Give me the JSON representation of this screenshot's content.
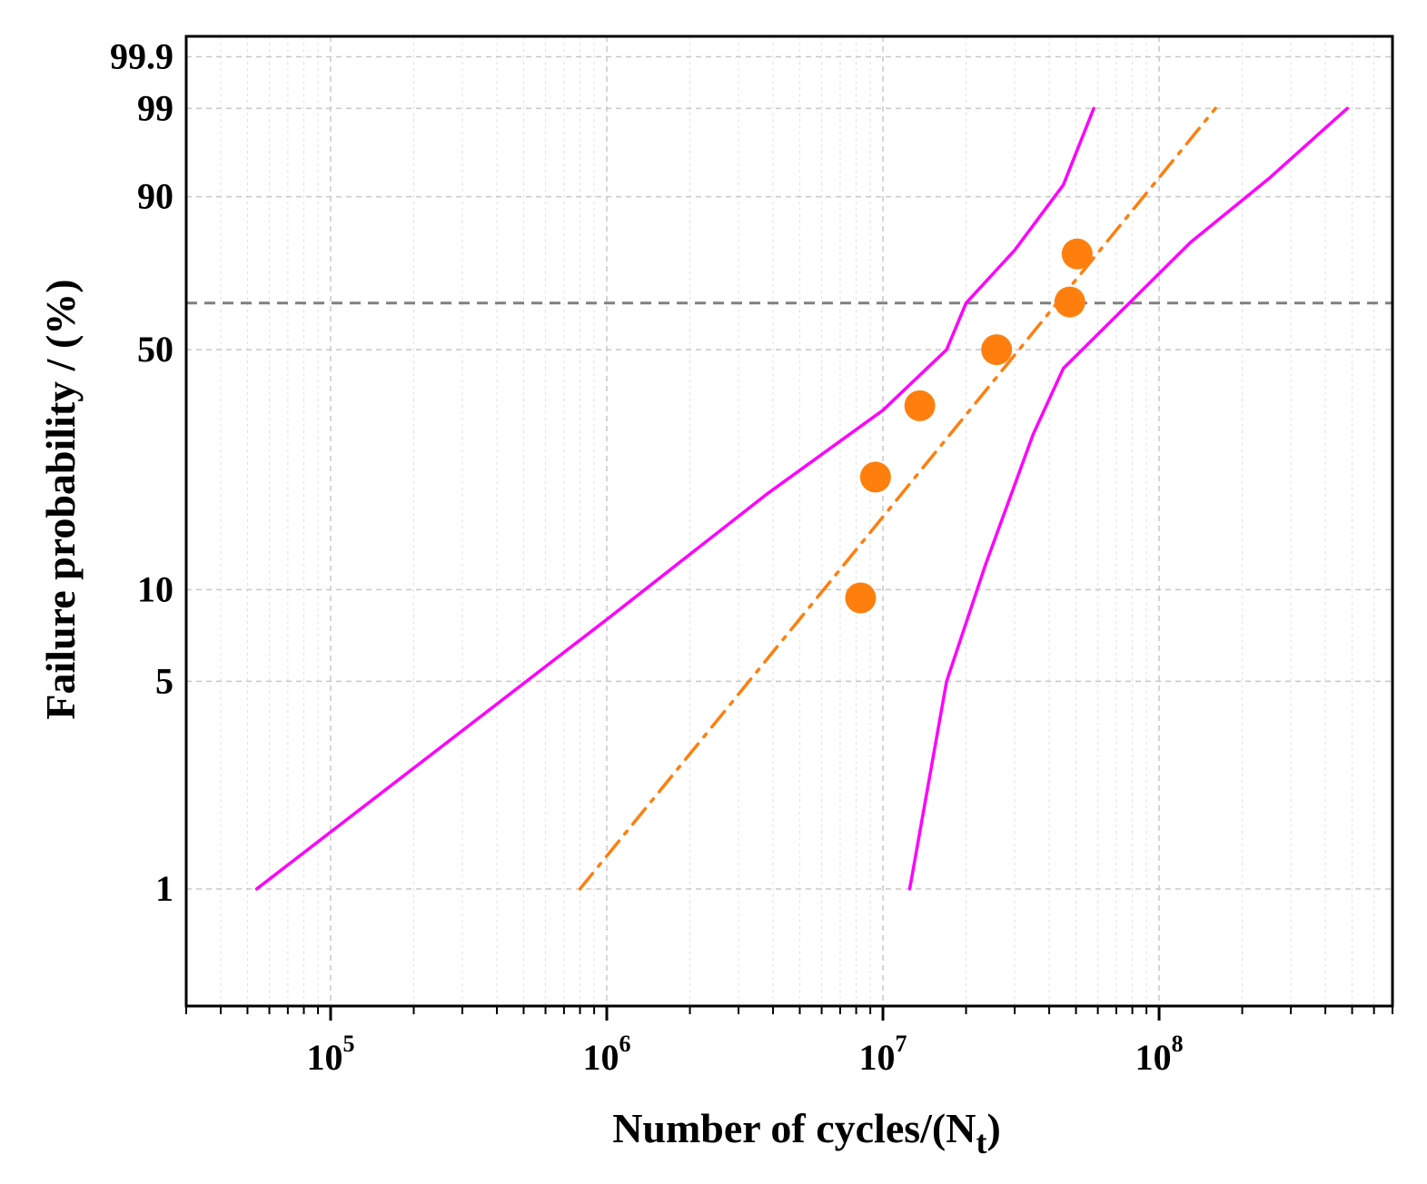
{
  "chart_data": {
    "type": "scatter",
    "title": "",
    "xlabel": "Number of cycles/(N",
    "xlabel_subscript": "t",
    "xlabel_close": ")",
    "ylabel": "Failure probability / (%)",
    "x_scale": "log",
    "y_scale": "weibull-probability",
    "xlim": [
      30000,
      700000000
    ],
    "ylim": [
      0.4,
      99.97
    ],
    "x_ticks": [
      {
        "base": "10",
        "exp": "5",
        "value": 100000
      },
      {
        "base": "10",
        "exp": "6",
        "value": 1000000
      },
      {
        "base": "10",
        "exp": "7",
        "value": 10000000
      },
      {
        "base": "10",
        "exp": "8",
        "value": 100000000
      }
    ],
    "y_ticks": [
      {
        "label": "1",
        "value": 1
      },
      {
        "label": "5",
        "value": 5
      },
      {
        "label": "10",
        "value": 10
      },
      {
        "label": "50",
        "value": 50
      },
      {
        "label": "90",
        "value": 90
      },
      {
        "label": "99",
        "value": 99
      },
      {
        "label": "99.9",
        "value": 99.9
      }
    ],
    "grid": true,
    "reference_line": {
      "y": 63.2,
      "style": "dashed",
      "color": "#808080"
    },
    "series": [
      {
        "kind": "points",
        "color": "#ff7f0e",
        "points": [
          {
            "x": 8300000,
            "y": 9.4
          },
          {
            "x": 9400000,
            "y": 22.5
          },
          {
            "x": 13600000,
            "y": 36
          },
          {
            "x": 25800000,
            "y": 50
          },
          {
            "x": 47500000,
            "y": 63.5
          },
          {
            "x": 50500000,
            "y": 77
          }
        ]
      },
      {
        "kind": "fit-line",
        "color": "#ff7f0e",
        "style": "dash-dot",
        "points": [
          {
            "x": 800000,
            "y": 1
          },
          {
            "x": 160000000,
            "y": 99
          }
        ]
      },
      {
        "kind": "confidence-bound",
        "color": "#ff00ff",
        "points": [
          {
            "x": 54000,
            "y": 1
          },
          {
            "x": 1000000,
            "y": 8
          },
          {
            "x": 3800000,
            "y": 20
          },
          {
            "x": 10000000,
            "y": 35
          },
          {
            "x": 17000000,
            "y": 50
          },
          {
            "x": 20000000,
            "y": 63.2
          },
          {
            "x": 30000000,
            "y": 78
          },
          {
            "x": 45000000,
            "y": 92
          },
          {
            "x": 58000000,
            "y": 99
          }
        ]
      },
      {
        "kind": "confidence-bound",
        "color": "#ff00ff",
        "points": [
          {
            "x": 12500000,
            "y": 1
          },
          {
            "x": 17000000,
            "y": 5
          },
          {
            "x": 23500000,
            "y": 12
          },
          {
            "x": 35000000,
            "y": 30
          },
          {
            "x": 45000000,
            "y": 45
          },
          {
            "x": 78000000,
            "y": 63.2
          },
          {
            "x": 130000000,
            "y": 80
          },
          {
            "x": 250000000,
            "y": 93
          },
          {
            "x": 480000000,
            "y": 99
          }
        ]
      }
    ]
  }
}
